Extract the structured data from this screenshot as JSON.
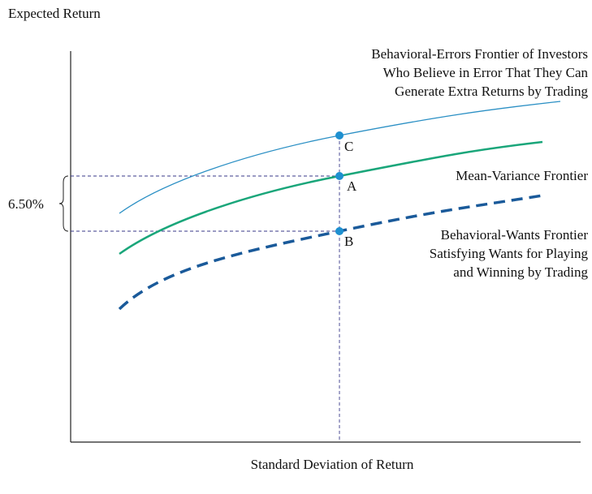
{
  "y_axis_label": "Expected Return",
  "x_axis_label": "Standard Deviation of Return",
  "bracket_label": "6.50%",
  "frontiers": [
    {
      "label_lines": [
        "Behavioral-Errors Frontier of Investors",
        "Who Believe in Error That They Can",
        "Generate Extra Returns by Trading"
      ],
      "point": "C"
    },
    {
      "label_lines": [
        "Mean-Variance Frontier"
      ],
      "point": "A"
    },
    {
      "label_lines": [
        "Behavioral-Wants Frontier",
        "Satisfying Wants for Playing",
        "and Winning by Trading"
      ],
      "point": "B"
    }
  ]
}
